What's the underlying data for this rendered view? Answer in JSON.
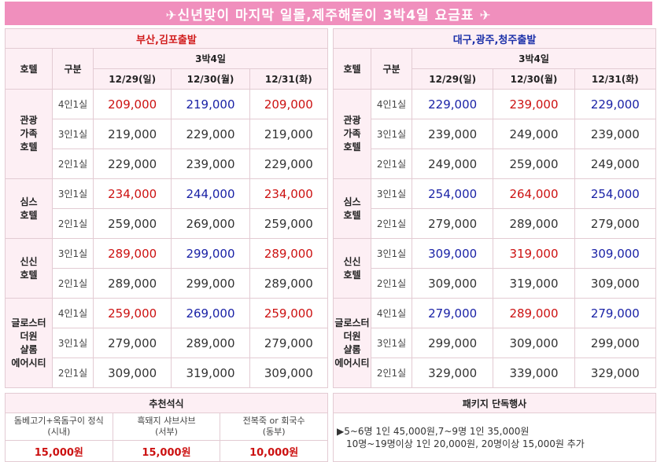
{
  "banner": "✈신년맞이 마지막 일몰,제주해돋이 3박4일 요금표 ✈",
  "left": {
    "region": "부산,김포출발",
    "col_hotel": "호텔",
    "col_type": "구분",
    "nights": "3박4일",
    "dates": [
      "12/29(일)",
      "12/30(월)",
      "12/31(화)"
    ],
    "hotels": [
      {
        "name": [
          "관광",
          "가족",
          "호텔"
        ],
        "rows": [
          {
            "room": "4인1실",
            "prices": [
              "209,000",
              "219,000",
              "209,000"
            ],
            "colors": [
              "red",
              "blue",
              "red"
            ]
          },
          {
            "room": "3인1실",
            "prices": [
              "219,000",
              "229,000",
              "219,000"
            ],
            "colors": [
              "",
              "",
              ""
            ]
          },
          {
            "room": "2인1실",
            "prices": [
              "229,000",
              "239,000",
              "229,000"
            ],
            "colors": [
              "",
              "",
              ""
            ]
          }
        ]
      },
      {
        "name": [
          "심스",
          "호텔"
        ],
        "rows": [
          {
            "room": "3인1실",
            "prices": [
              "234,000",
              "244,000",
              "234,000"
            ],
            "colors": [
              "red",
              "blue",
              "red"
            ]
          },
          {
            "room": "2인1실",
            "prices": [
              "259,000",
              "269,000",
              "259,000"
            ],
            "colors": [
              "",
              "",
              ""
            ]
          }
        ]
      },
      {
        "name": [
          "신신",
          "호텔"
        ],
        "rows": [
          {
            "room": "3인1실",
            "prices": [
              "289,000",
              "299,000",
              "289,000"
            ],
            "colors": [
              "red",
              "blue",
              "red"
            ]
          },
          {
            "room": "2인1실",
            "prices": [
              "289,000",
              "299,000",
              "289,000"
            ],
            "colors": [
              "",
              "",
              ""
            ]
          }
        ]
      },
      {
        "name": [
          "글로스터",
          "더원",
          "샬롬",
          "에어시티"
        ],
        "rows": [
          {
            "room": "4인1실",
            "prices": [
              "259,000",
              "269,000",
              "259,000"
            ],
            "colors": [
              "red",
              "blue",
              "red"
            ]
          },
          {
            "room": "3인1실",
            "prices": [
              "279,000",
              "289,000",
              "279,000"
            ],
            "colors": [
              "",
              "",
              ""
            ]
          },
          {
            "room": "2인1실",
            "prices": [
              "309,000",
              "319,000",
              "309,000"
            ],
            "colors": [
              "",
              "",
              ""
            ]
          }
        ]
      }
    ]
  },
  "right": {
    "region": "대구,광주,청주출발",
    "col_hotel": "호텔",
    "col_type": "구분",
    "nights": "3박4일",
    "dates": [
      "12/29(일)",
      "12/30(월)",
      "12/31(화)"
    ],
    "hotels": [
      {
        "name": [
          "관광",
          "가족",
          "호텔"
        ],
        "rows": [
          {
            "room": "4인1실",
            "prices": [
              "229,000",
              "239,000",
              "229,000"
            ],
            "colors": [
              "blue",
              "red",
              "blue"
            ]
          },
          {
            "room": "3인1실",
            "prices": [
              "239,000",
              "249,000",
              "239,000"
            ],
            "colors": [
              "",
              "",
              ""
            ]
          },
          {
            "room": "2인1실",
            "prices": [
              "249,000",
              "259,000",
              "249,000"
            ],
            "colors": [
              "",
              "",
              ""
            ]
          }
        ]
      },
      {
        "name": [
          "심스",
          "호텔"
        ],
        "rows": [
          {
            "room": "3인1실",
            "prices": [
              "254,000",
              "264,000",
              "254,000"
            ],
            "colors": [
              "blue",
              "red",
              "blue"
            ]
          },
          {
            "room": "2인1실",
            "prices": [
              "279,000",
              "289,000",
              "279,000"
            ],
            "colors": [
              "",
              "",
              ""
            ]
          }
        ]
      },
      {
        "name": [
          "신신",
          "호텔"
        ],
        "rows": [
          {
            "room": "3인1실",
            "prices": [
              "309,000",
              "319,000",
              "309,000"
            ],
            "colors": [
              "blue",
              "red",
              "blue"
            ]
          },
          {
            "room": "2인1실",
            "prices": [
              "309,000",
              "319,000",
              "309,000"
            ],
            "colors": [
              "",
              "",
              ""
            ]
          }
        ]
      },
      {
        "name": [
          "글로스터",
          "더원",
          "샬롬",
          "에어시티"
        ],
        "rows": [
          {
            "room": "4인1실",
            "prices": [
              "279,000",
              "289,000",
              "279,000"
            ],
            "colors": [
              "blue",
              "red",
              "blue"
            ]
          },
          {
            "room": "3인1실",
            "prices": [
              "299,000",
              "309,000",
              "299,000"
            ],
            "colors": [
              "",
              "",
              ""
            ]
          },
          {
            "room": "2인1실",
            "prices": [
              "329,000",
              "339,000",
              "329,000"
            ],
            "colors": [
              "",
              "",
              ""
            ]
          }
        ]
      }
    ]
  },
  "meals": {
    "title": "추천석식",
    "items": [
      {
        "name": "돔베고기+옥돔구이 정식",
        "area": "(시내)",
        "price": "15,000원"
      },
      {
        "name": "흑돼지 샤브샤브",
        "area": "(서부)",
        "price": "15,000원"
      },
      {
        "name": "전복죽 or 회국수",
        "area": "(동부)",
        "price": "10,000원"
      }
    ]
  },
  "promo": {
    "title": "패키지 단독행사",
    "line1": "▶5~6명 1인 45,000원,7~9명 1인 35,000원",
    "line2": "10명~19명이상 1인 20,000원, 20명이상 15,000원 추가"
  },
  "colors": {
    "banner": "#f08fbd",
    "red": "#cc1111",
    "blue": "#1a22a6",
    "header_bg": "#fdeff4"
  }
}
